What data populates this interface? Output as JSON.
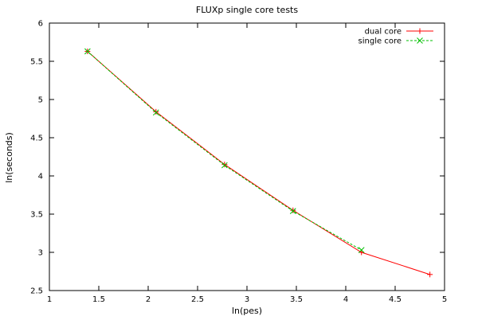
{
  "chart_data": {
    "type": "line",
    "title": "FLUXp single core tests",
    "xlabel": "ln(pes)",
    "ylabel": "ln(seconds)",
    "xlim": [
      1,
      5
    ],
    "ylim": [
      2.5,
      6
    ],
    "x_ticks": [
      1,
      1.5,
      2,
      2.5,
      3,
      3.5,
      4,
      4.5,
      5
    ],
    "y_ticks": [
      2.5,
      3,
      3.5,
      4,
      4.5,
      5,
      5.5,
      6
    ],
    "x_tick_labels": [
      "1",
      "1.5",
      "2",
      "2.5",
      "3",
      "3.5",
      "4",
      "4.5",
      "5"
    ],
    "y_tick_labels": [
      "2.5",
      "3",
      "3.5",
      "4",
      "4.5",
      "5",
      "5.5",
      "6"
    ],
    "grid": false,
    "legend_position": "top-right",
    "series": [
      {
        "name": "dual core",
        "color": "#ff0000",
        "marker": "plus",
        "points": [
          [
            1.386,
            5.63
          ],
          [
            2.079,
            4.84
          ],
          [
            2.773,
            4.15
          ],
          [
            3.466,
            3.55
          ],
          [
            4.159,
            3.0
          ],
          [
            4.852,
            2.71
          ]
        ]
      },
      {
        "name": "single core",
        "color": "#00c000",
        "marker": "cross",
        "points": [
          [
            1.386,
            5.63
          ],
          [
            2.079,
            4.83
          ],
          [
            2.773,
            4.14
          ],
          [
            3.466,
            3.54
          ],
          [
            4.159,
            3.03
          ]
        ]
      }
    ]
  }
}
